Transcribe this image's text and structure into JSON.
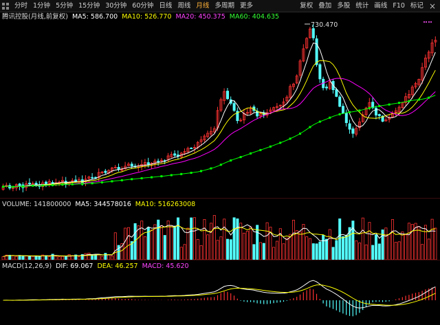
{
  "toolbar": {
    "left_items": [
      "分时",
      "1分钟",
      "5分钟",
      "15分钟",
      "30分钟",
      "60分钟",
      "日线",
      "周线",
      "月线",
      "多周期",
      "更多"
    ],
    "active_item": "月线",
    "right_items": [
      "复权",
      "叠加",
      "多股",
      "统计",
      "画线",
      "F10",
      "标记"
    ],
    "menu_icon": "grid-icon",
    "close_icon": "close-icon"
  },
  "price_legend": {
    "stock_name": "腾讯控股(月线,前复权)",
    "ma5": "MA5: 586.700",
    "ma10": "MA10: 526.770",
    "ma20": "MA20: 450.375",
    "ma60": "MA60: 404.635",
    "peak_label": "730.470"
  },
  "volume_legend": {
    "volume": "VOLUME: 141800000",
    "ma5": "MA5: 344578016",
    "ma10": "MA10: 516263008"
  },
  "macd_legend": {
    "title": "MACD(12,26,9)",
    "dif": "DIF: 69.067",
    "dea": "DEA: 46.257",
    "macd": "MACD: 45.620"
  },
  "colors": {
    "up": "#ff3232",
    "down": "#54ffff",
    "ma5": "#ffffff",
    "ma10": "#ffff00",
    "ma20": "#ff00ff",
    "ma60": "#00ff00",
    "background": "#000000"
  }
}
